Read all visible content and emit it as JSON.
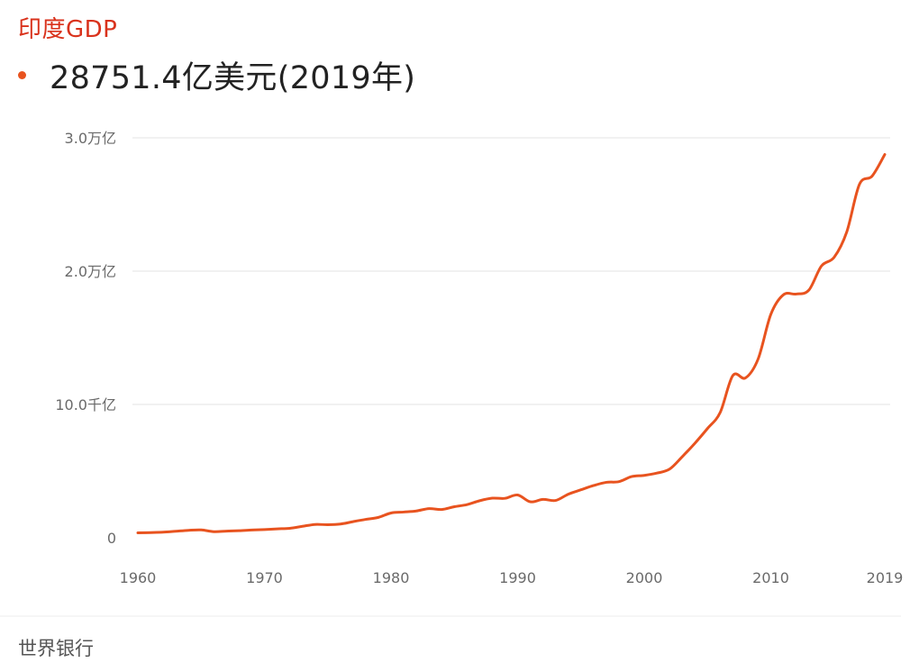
{
  "title": "印度GDP",
  "headline": {
    "value": "28751.4亿美元(2019年)"
  },
  "source": "世界银行",
  "colors": {
    "title": "#d9321c",
    "line": "#e8531f",
    "grid": "#e3e3e3"
  },
  "chart_data": {
    "type": "line",
    "title": "印度GDP",
    "xlabel": "",
    "ylabel": "",
    "x_tick_labels": [
      "1960",
      "1970",
      "1980",
      "1990",
      "2000",
      "2010",
      "2019"
    ],
    "y_tick_labels": [
      "0",
      "10.0千亿",
      "2.0万亿",
      "3.0万亿"
    ],
    "x_range": [
      1960,
      2019
    ],
    "ylim": [
      0,
      3.0
    ],
    "y_unit": "万亿美元",
    "grid": true,
    "legend": "none",
    "series": [
      {
        "x": [
          1960,
          1961,
          1962,
          1963,
          1964,
          1965,
          1966,
          1967,
          1968,
          1969,
          1970,
          1971,
          1972,
          1973,
          1974,
          1975,
          1976,
          1977,
          1978,
          1979,
          1980,
          1981,
          1982,
          1983,
          1984,
          1985,
          1986,
          1987,
          1988,
          1989,
          1990,
          1991,
          1992,
          1993,
          1994,
          1995,
          1996,
          1997,
          1998,
          1999,
          2000,
          2001,
          2002,
          2003,
          2004,
          2005,
          2006,
          2007,
          2008,
          2009,
          2010,
          2011,
          2012,
          2013,
          2014,
          2015,
          2016,
          2017,
          2018,
          2019
        ],
        "values": [
          0.037,
          0.039,
          0.042,
          0.049,
          0.056,
          0.059,
          0.046,
          0.05,
          0.053,
          0.058,
          0.062,
          0.067,
          0.071,
          0.086,
          0.1,
          0.098,
          0.103,
          0.121,
          0.138,
          0.153,
          0.186,
          0.193,
          0.201,
          0.219,
          0.212,
          0.233,
          0.249,
          0.278,
          0.297,
          0.296,
          0.321,
          0.27,
          0.288,
          0.28,
          0.327,
          0.36,
          0.392,
          0.416,
          0.421,
          0.459,
          0.468,
          0.485,
          0.515,
          0.608,
          0.709,
          0.82,
          0.94,
          1.217,
          1.199,
          1.342,
          1.676,
          1.823,
          1.828,
          1.857,
          2.039,
          2.104,
          2.295,
          2.651,
          2.713,
          2.875
        ]
      }
    ]
  }
}
